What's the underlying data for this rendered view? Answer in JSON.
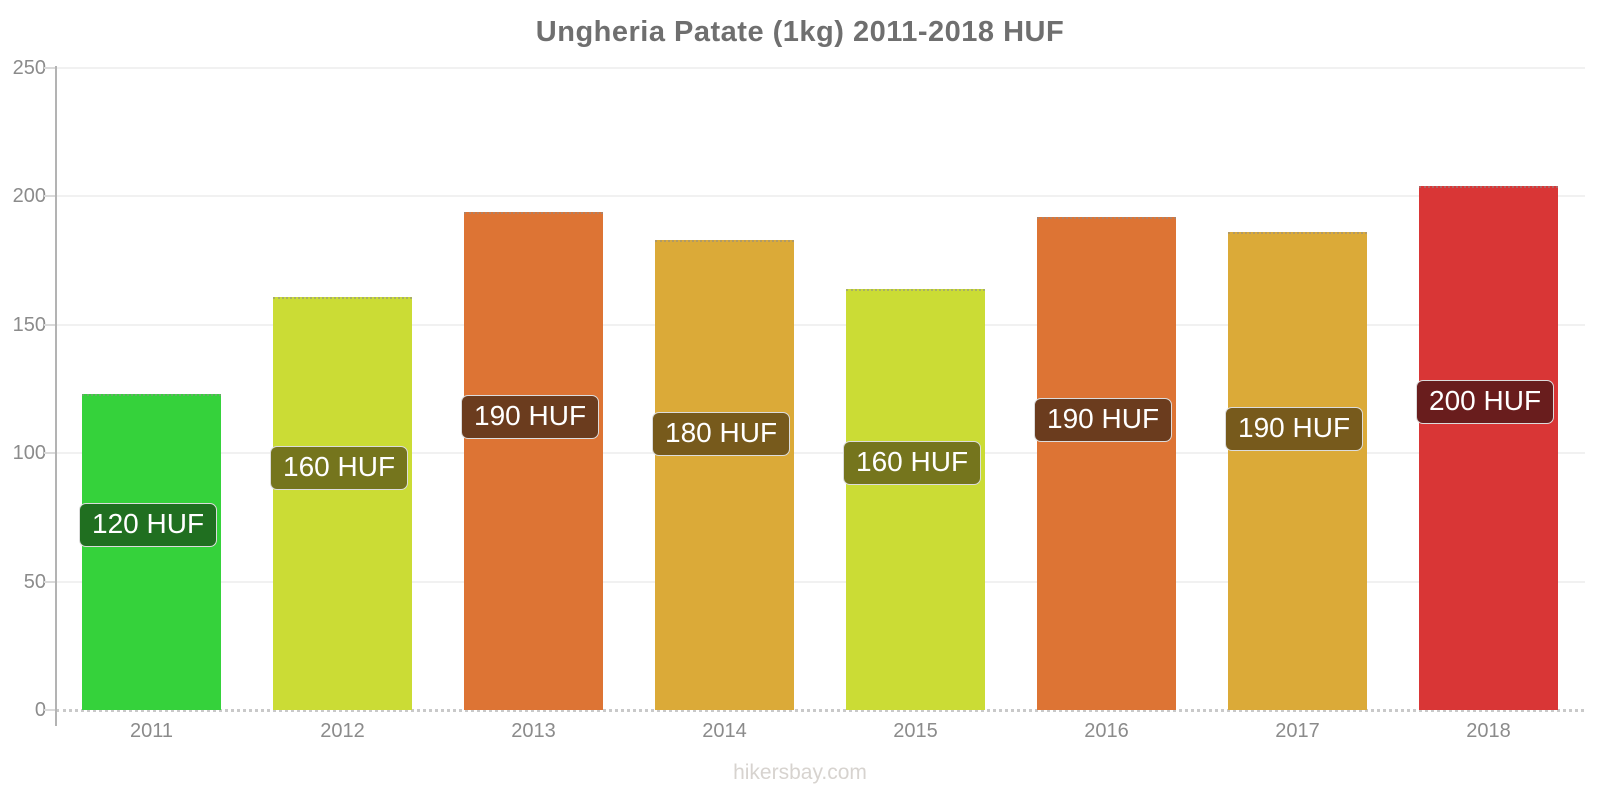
{
  "title": "Ungheria Patate (1kg) 2011-2018 HUF",
  "footer": "hikersbay.com",
  "chart_data": {
    "type": "bar",
    "title": "Ungheria Patate (1kg) 2011-2018 HUF",
    "categories": [
      "2011",
      "2012",
      "2013",
      "2014",
      "2015",
      "2016",
      "2017",
      "2018"
    ],
    "values": [
      123,
      161,
      194,
      183,
      164,
      192,
      186,
      204
    ],
    "value_labels": [
      "120 HUF",
      "160 HUF",
      "190 HUF",
      "180 HUF",
      "160 HUF",
      "190 HUF",
      "190 HUF",
      "200 HUF"
    ],
    "bar_colors": [
      "#35d23b",
      "#cbdc35",
      "#dd7434",
      "#dbaa38",
      "#cbdc35",
      "#dd7434",
      "#dbaa38",
      "#d93636"
    ],
    "badge_colors": [
      "#206f20",
      "#75751d",
      "#6b3c1e",
      "#775a1c",
      "#75751d",
      "#6b3c1e",
      "#775a1c",
      "#691d1d"
    ],
    "xlabel": "",
    "ylabel": "",
    "ylim": [
      0,
      250
    ],
    "yticks": [
      0,
      50,
      100,
      150,
      200,
      250
    ],
    "grid": true,
    "legend_position": "none"
  },
  "colors": {
    "background": "#ffffff",
    "title_text": "#6f6f6f",
    "axis_line": "#b3b3b3",
    "tick_text": "#8b8b8b",
    "gridline": "#f1f1f1",
    "badge_text": "#ffffff",
    "watermark_text": "#d7d3cf"
  }
}
